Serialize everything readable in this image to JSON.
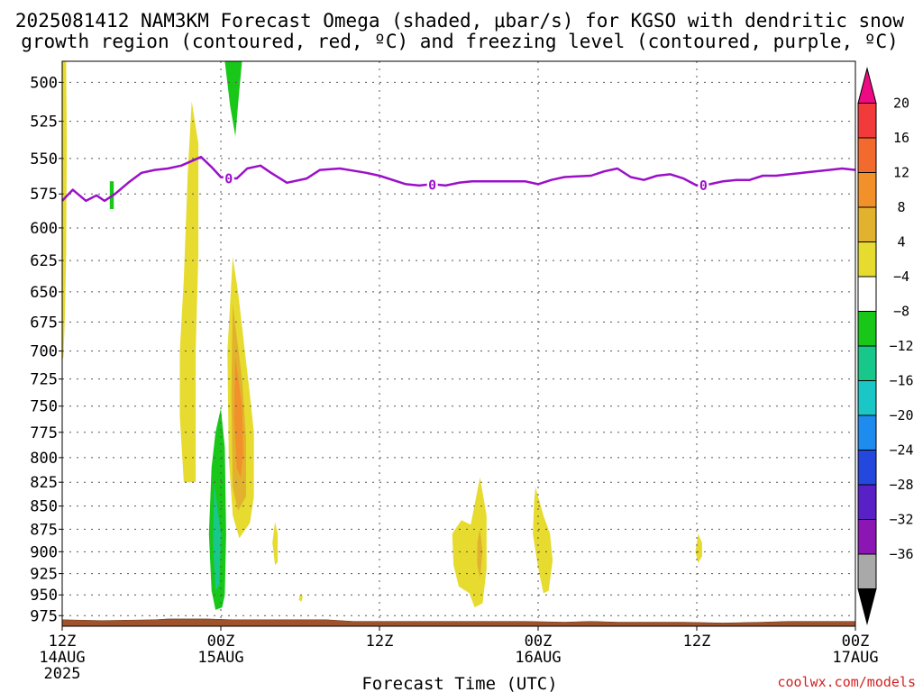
{
  "chart_data": {
    "type": "heatmap",
    "title_lines": [
      "2025081412 NAM3KM Forecast Omega (shaded, μbar/s) for KGSO with dendritic snow",
      "growth region (contoured, red, ºC) and freezing level (contoured, purple, ºC)"
    ],
    "xlabel": "Forecast Time (UTC)",
    "credit": "coolwx.com/models",
    "x_ticks": [
      {
        "hour": 0,
        "lines": [
          "12Z",
          "14AUG",
          "2025"
        ]
      },
      {
        "hour": 12,
        "lines": [
          "00Z",
          "15AUG"
        ]
      },
      {
        "hour": 24,
        "lines": [
          "12Z"
        ]
      },
      {
        "hour": 36,
        "lines": [
          "00Z",
          "16AUG"
        ]
      },
      {
        "hour": 48,
        "lines": [
          "12Z"
        ]
      },
      {
        "hour": 60,
        "lines": [
          "00Z",
          "17AUG"
        ]
      }
    ],
    "x_range_hours": [
      0,
      60
    ],
    "y_ticks": [
      500,
      525,
      550,
      575,
      600,
      625,
      650,
      675,
      700,
      725,
      750,
      775,
      800,
      825,
      850,
      875,
      900,
      925,
      950,
      975
    ],
    "y_range_hpa": [
      487,
      988
    ],
    "y_scale": "log-pressure",
    "grid": true,
    "colorbar": {
      "levels": [
        "20",
        "16",
        "12",
        "8",
        "4",
        "−4",
        "−8",
        "−12",
        "−16",
        "−20",
        "−24",
        "−28",
        "−32",
        "−36"
      ],
      "bins": [
        "#ee0a82",
        "#f23a3a",
        "#f36a2e",
        "#f2902a",
        "#e2b12e",
        "#e6db2e",
        "#ffffff",
        "#18c718",
        "#18c78a",
        "#1ac6c6",
        "#1e8cee",
        "#2448dd",
        "#5a20c8",
        "#8c16b4",
        "#a9a9a9",
        "#000000"
      ]
    },
    "freezing_level": {
      "color": "#9b10c9",
      "label": "0",
      "points": [
        [
          0,
          580
        ],
        [
          0.8,
          572
        ],
        [
          1.8,
          580
        ],
        [
          2.6,
          576
        ],
        [
          3.2,
          580
        ],
        [
          4,
          575
        ],
        [
          5,
          567
        ],
        [
          6,
          560
        ],
        [
          7,
          558
        ],
        [
          8,
          557
        ],
        [
          9,
          555
        ],
        [
          10.5,
          549
        ],
        [
          11.3,
          556
        ],
        [
          12,
          563
        ],
        [
          13.2,
          564
        ],
        [
          14,
          557
        ],
        [
          15,
          555
        ],
        [
          15.8,
          560
        ],
        [
          17,
          567
        ],
        [
          18.5,
          564
        ],
        [
          19.5,
          558
        ],
        [
          21,
          557
        ],
        [
          23,
          560
        ],
        [
          24,
          562
        ],
        [
          26,
          568
        ],
        [
          27,
          569
        ],
        [
          28,
          568
        ],
        [
          29,
          569
        ],
        [
          30,
          567
        ],
        [
          31,
          566
        ],
        [
          33,
          566
        ],
        [
          35,
          566
        ],
        [
          36,
          568
        ],
        [
          37,
          565
        ],
        [
          38,
          563
        ],
        [
          40,
          562
        ],
        [
          41,
          559
        ],
        [
          42,
          557
        ],
        [
          43,
          563
        ],
        [
          44,
          565
        ],
        [
          45,
          562
        ],
        [
          46,
          561
        ],
        [
          47,
          564
        ],
        [
          48,
          569
        ],
        [
          49,
          568
        ],
        [
          50,
          566
        ],
        [
          51,
          565
        ],
        [
          52,
          565
        ],
        [
          53,
          562
        ],
        [
          54,
          562
        ],
        [
          55,
          561
        ],
        [
          56,
          560
        ],
        [
          58,
          558
        ],
        [
          59,
          557
        ],
        [
          60,
          558
        ]
      ],
      "label_hours": [
        12.6,
        28,
        48.5
      ]
    },
    "shaded_regions": [
      {
        "level": "−4 to −8",
        "color": "#18c718",
        "points": [
          [
            12.3,
            485
          ],
          [
            13.6,
            485
          ],
          [
            13.4,
            505
          ],
          [
            13.1,
            535
          ],
          [
            12.7,
            515
          ]
        ]
      },
      {
        "level": "4 to 8",
        "color": "#e6db2e",
        "points": [
          [
            0,
            485
          ],
          [
            0.3,
            485
          ],
          [
            0.35,
            540
          ],
          [
            0.3,
            620
          ],
          [
            0.22,
            665
          ],
          [
            0.1,
            705
          ],
          [
            0,
            708
          ]
        ]
      },
      {
        "level": "−4 to −8",
        "color": "#18c718",
        "points": [
          [
            3.6,
            566
          ],
          [
            3.9,
            566
          ],
          [
            3.9,
            586
          ],
          [
            3.6,
            586
          ]
        ]
      },
      {
        "level": "4 to 8",
        "color": "#e6db2e",
        "points": [
          [
            9.8,
            512
          ],
          [
            10.3,
            540
          ],
          [
            10.3,
            620
          ],
          [
            10.1,
            700
          ],
          [
            10.1,
            780
          ],
          [
            10.1,
            825
          ],
          [
            9.2,
            825
          ],
          [
            8.9,
            760
          ],
          [
            8.9,
            700
          ],
          [
            9.2,
            640
          ],
          [
            9.5,
            560
          ]
        ]
      },
      {
        "level": "4 to 8",
        "color": "#e6db2e",
        "points": [
          [
            12.9,
            622
          ],
          [
            13.3,
            650
          ],
          [
            14.2,
            740
          ],
          [
            14.5,
            775
          ],
          [
            14.5,
            840
          ],
          [
            14.2,
            868
          ],
          [
            13.4,
            885
          ],
          [
            12.9,
            860
          ],
          [
            12.6,
            800
          ],
          [
            12.5,
            700
          ]
        ]
      },
      {
        "level": "8 to 12",
        "color": "#e2b12e",
        "points": [
          [
            12.9,
            660
          ],
          [
            13.6,
            725
          ],
          [
            13.9,
            780
          ],
          [
            13.9,
            840
          ],
          [
            13.3,
            855
          ],
          [
            12.9,
            830
          ],
          [
            12.8,
            740
          ]
        ]
      },
      {
        "level": "12 to 16",
        "color": "#f2902a",
        "points": [
          [
            13.1,
            705
          ],
          [
            13.6,
            750
          ],
          [
            13.7,
            795
          ],
          [
            13.5,
            820
          ],
          [
            13.2,
            810
          ],
          [
            13.0,
            760
          ]
        ]
      },
      {
        "level": "−4 to −8",
        "color": "#18c718",
        "points": [
          [
            12.0,
            752
          ],
          [
            12.3,
            790
          ],
          [
            12.4,
            880
          ],
          [
            12.3,
            950
          ],
          [
            12.1,
            965
          ],
          [
            11.6,
            968
          ],
          [
            11.3,
            945
          ],
          [
            11.1,
            880
          ],
          [
            11.3,
            810
          ],
          [
            11.6,
            775
          ]
        ]
      },
      {
        "level": "−8 to −12",
        "color": "#18c78a",
        "points": [
          [
            11.5,
            826
          ],
          [
            12.0,
            880
          ],
          [
            11.9,
            938
          ],
          [
            11.6,
            945
          ],
          [
            11.4,
            890
          ]
        ]
      },
      {
        "level": "4 to 8",
        "color": "#e6db2e",
        "points": [
          [
            16.1,
            867
          ],
          [
            16.3,
            880
          ],
          [
            16.3,
            912
          ],
          [
            16.1,
            915
          ],
          [
            15.9,
            890
          ]
        ]
      },
      {
        "level": "4 to 8",
        "color": "#e6db2e",
        "points": [
          [
            18.0,
            949
          ],
          [
            18.2,
            952
          ],
          [
            18.1,
            958
          ],
          [
            17.9,
            956
          ]
        ]
      },
      {
        "level": "4 to 8",
        "color": "#e6db2e",
        "points": [
          [
            31.6,
            820
          ],
          [
            32.1,
            860
          ],
          [
            32.1,
            920
          ],
          [
            31.8,
            960
          ],
          [
            31.2,
            965
          ],
          [
            30.8,
            948
          ],
          [
            30.0,
            940
          ],
          [
            29.6,
            915
          ],
          [
            29.5,
            880
          ],
          [
            30.2,
            865
          ],
          [
            30.9,
            870
          ]
        ]
      },
      {
        "level": "8 to 12",
        "color": "#e2b12e",
        "points": [
          [
            31.6,
            875
          ],
          [
            31.8,
            900
          ],
          [
            31.6,
            930
          ],
          [
            31.4,
            915
          ],
          [
            31.4,
            890
          ]
        ]
      },
      {
        "level": "4 to 8",
        "color": "#e6db2e",
        "points": [
          [
            35.8,
            830
          ],
          [
            36.4,
            860
          ],
          [
            36.9,
            880
          ],
          [
            37.1,
            910
          ],
          [
            36.8,
            945
          ],
          [
            36.4,
            948
          ],
          [
            36.0,
            918
          ],
          [
            35.6,
            880
          ],
          [
            35.7,
            845
          ]
        ]
      },
      {
        "level": "4 to 8",
        "color": "#e6db2e",
        "points": [
          [
            48.1,
            880
          ],
          [
            48.4,
            890
          ],
          [
            48.4,
            905
          ],
          [
            48.1,
            913
          ],
          [
            47.9,
            900
          ]
        ]
      }
    ],
    "terrain": {
      "color": "#a0522d",
      "points": [
        [
          0,
          980
        ],
        [
          3,
          981
        ],
        [
          7,
          980
        ],
        [
          8,
          979
        ],
        [
          11,
          979
        ],
        [
          13,
          980
        ],
        [
          20,
          980
        ],
        [
          22,
          982
        ],
        [
          30,
          982
        ],
        [
          35,
          982
        ],
        [
          38,
          983
        ],
        [
          40,
          982
        ],
        [
          42,
          983
        ],
        [
          47,
          983
        ],
        [
          50,
          984
        ],
        [
          53,
          983
        ],
        [
          55,
          982
        ],
        [
          58,
          982
        ],
        [
          60,
          982
        ]
      ]
    }
  }
}
